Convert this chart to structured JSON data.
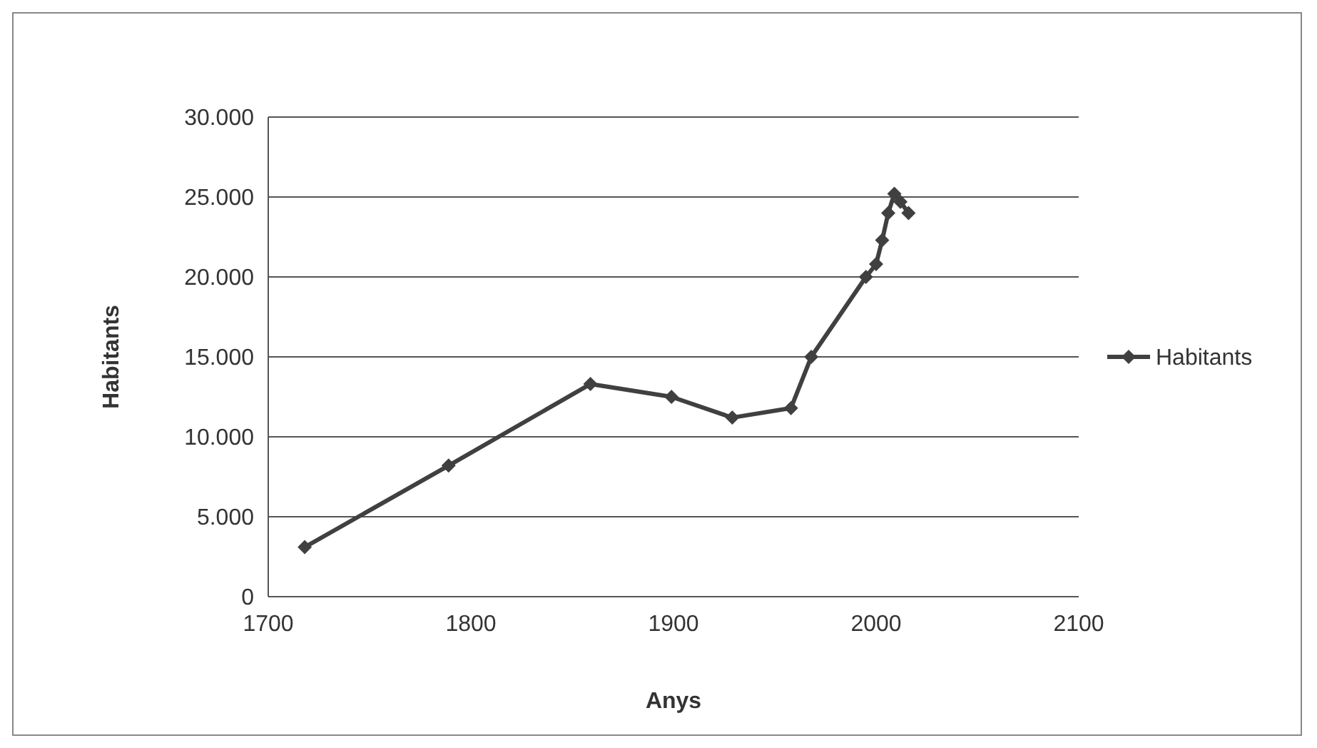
{
  "chart_data": {
    "type": "line",
    "xlabel": "Anys",
    "ylabel": "Habitants",
    "x": [
      1718,
      1789,
      1859,
      1899,
      1929,
      1958,
      1968,
      1995,
      2000,
      2003,
      2006,
      2009,
      2012,
      2016
    ],
    "series": [
      {
        "name": "Habitants",
        "color": "#404040",
        "values": [
          3100,
          8200,
          13300,
          12500,
          11200,
          11800,
          15000,
          20000,
          20800,
          22300,
          24000,
          25200,
          24700,
          24000
        ]
      }
    ],
    "xlim": [
      1700,
      2100
    ],
    "xticks": [
      1700,
      1800,
      1900,
      2000,
      2100
    ],
    "ylim": [
      0,
      30000
    ],
    "yticks": [
      {
        "value": 0,
        "label": "0"
      },
      {
        "value": 5000,
        "label": "5.000"
      },
      {
        "value": 10000,
        "label": "10.000"
      },
      {
        "value": 15000,
        "label": "15.000"
      },
      {
        "value": 20000,
        "label": "20.000"
      },
      {
        "value": 25000,
        "label": "25.000"
      },
      {
        "value": 30000,
        "label": "30.000"
      }
    ],
    "grid": "y",
    "legend": "right",
    "marker": "diamond",
    "line_style": "solid"
  }
}
